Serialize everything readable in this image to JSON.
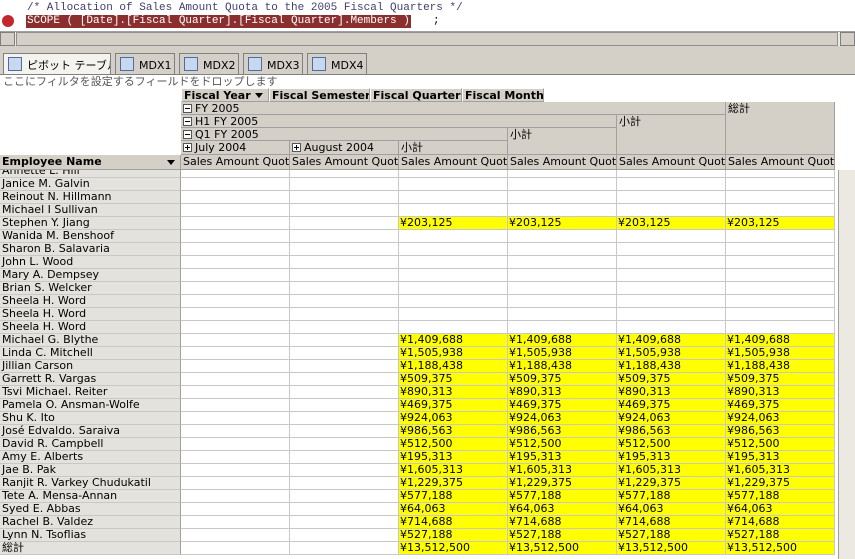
{
  "editor": {
    "comment": "/* Allocation of Sales Amount Quota to the 2005 Fiscal Quarters */",
    "breakpoint_statement": "SCOPE ( [Date].[Fiscal Quarter].[Fiscal Quarter].Members )",
    "statement_end": ";"
  },
  "tabs": [
    "ピボット テーブル",
    "MDX1",
    "MDX2",
    "MDX3",
    "MDX4"
  ],
  "filter_hint": "ここにフィルタを設定するフィールドをドロップします",
  "column_fields": [
    "Fiscal Year",
    "Fiscal Semester",
    "Fiscal Quarter",
    "Fiscal Month"
  ],
  "column_headers": {
    "year": "FY 2005",
    "semester": "H1 FY 2005",
    "quarter": "Q1 FY 2005",
    "months": [
      "July 2004",
      "August 2004"
    ],
    "subtotal": "小計",
    "grand_total": "総計",
    "measure": "Sales Amount Quota"
  },
  "row_field": "Employee Name",
  "rows": [
    {
      "name": "Annette L. Hill",
      "values": [
        null,
        null,
        null,
        null,
        null,
        null
      ]
    },
    {
      "name": "Janice M. Galvin",
      "values": [
        null,
        null,
        null,
        null,
        null,
        null
      ]
    },
    {
      "name": "Reinout N. Hillmann",
      "values": [
        null,
        null,
        null,
        null,
        null,
        null
      ]
    },
    {
      "name": "Michael I Sullivan",
      "values": [
        null,
        null,
        null,
        null,
        null,
        null
      ]
    },
    {
      "name": "Stephen Y. Jiang",
      "values": [
        null,
        null,
        "¥203,125",
        "¥203,125",
        "¥203,125",
        "¥203,125"
      ]
    },
    {
      "name": "Wanida M. Benshoof",
      "values": [
        null,
        null,
        null,
        null,
        null,
        null
      ]
    },
    {
      "name": "Sharon B. Salavaria",
      "values": [
        null,
        null,
        null,
        null,
        null,
        null
      ]
    },
    {
      "name": "John L. Wood",
      "values": [
        null,
        null,
        null,
        null,
        null,
        null
      ]
    },
    {
      "name": "Mary A. Dempsey",
      "values": [
        null,
        null,
        null,
        null,
        null,
        null
      ]
    },
    {
      "name": "Brian S. Welcker",
      "values": [
        null,
        null,
        null,
        null,
        null,
        null
      ]
    },
    {
      "name": "Sheela H. Word",
      "values": [
        null,
        null,
        null,
        null,
        null,
        null
      ]
    },
    {
      "name": "Sheela H. Word",
      "values": [
        null,
        null,
        null,
        null,
        null,
        null
      ]
    },
    {
      "name": "Sheela H. Word",
      "values": [
        null,
        null,
        null,
        null,
        null,
        null
      ]
    },
    {
      "name": "Michael G. Blythe",
      "values": [
        null,
        null,
        "¥1,409,688",
        "¥1,409,688",
        "¥1,409,688",
        "¥1,409,688"
      ]
    },
    {
      "name": "Linda C. Mitchell",
      "values": [
        null,
        null,
        "¥1,505,938",
        "¥1,505,938",
        "¥1,505,938",
        "¥1,505,938"
      ]
    },
    {
      "name": "Jillian Carson",
      "values": [
        null,
        null,
        "¥1,188,438",
        "¥1,188,438",
        "¥1,188,438",
        "¥1,188,438"
      ]
    },
    {
      "name": "Garrett R. Vargas",
      "values": [
        null,
        null,
        "¥509,375",
        "¥509,375",
        "¥509,375",
        "¥509,375"
      ]
    },
    {
      "name": "Tsvi Michael. Reiter",
      "values": [
        null,
        null,
        "¥890,313",
        "¥890,313",
        "¥890,313",
        "¥890,313"
      ]
    },
    {
      "name": "Pamela O. Ansman-Wolfe",
      "values": [
        null,
        null,
        "¥469,375",
        "¥469,375",
        "¥469,375",
        "¥469,375"
      ]
    },
    {
      "name": "Shu K. Ito",
      "values": [
        null,
        null,
        "¥924,063",
        "¥924,063",
        "¥924,063",
        "¥924,063"
      ]
    },
    {
      "name": "José Edvaldo. Saraiva",
      "values": [
        null,
        null,
        "¥986,563",
        "¥986,563",
        "¥986,563",
        "¥986,563"
      ]
    },
    {
      "name": "David R. Campbell",
      "values": [
        null,
        null,
        "¥512,500",
        "¥512,500",
        "¥512,500",
        "¥512,500"
      ]
    },
    {
      "name": "Amy E. Alberts",
      "values": [
        null,
        null,
        "¥195,313",
        "¥195,313",
        "¥195,313",
        "¥195,313"
      ]
    },
    {
      "name": "Jae B. Pak",
      "values": [
        null,
        null,
        "¥1,605,313",
        "¥1,605,313",
        "¥1,605,313",
        "¥1,605,313"
      ]
    },
    {
      "name": "Ranjit R. Varkey Chudukatil",
      "values": [
        null,
        null,
        "¥1,229,375",
        "¥1,229,375",
        "¥1,229,375",
        "¥1,229,375"
      ]
    },
    {
      "name": "Tete A. Mensa-Annan",
      "values": [
        null,
        null,
        "¥577,188",
        "¥577,188",
        "¥577,188",
        "¥577,188"
      ]
    },
    {
      "name": "Syed E. Abbas",
      "values": [
        null,
        null,
        "¥64,063",
        "¥64,063",
        "¥64,063",
        "¥64,063"
      ]
    },
    {
      "name": "Rachel B. Valdez",
      "values": [
        null,
        null,
        "¥714,688",
        "¥714,688",
        "¥714,688",
        "¥714,688"
      ]
    },
    {
      "name": "Lynn N. Tsoflias",
      "values": [
        null,
        null,
        "¥527,188",
        "¥527,188",
        "¥527,188",
        "¥527,188"
      ]
    },
    {
      "name": "総計",
      "values": [
        null,
        null,
        "¥13,512,500",
        "¥13,512,500",
        "¥13,512,500",
        "¥13,512,500"
      ]
    }
  ]
}
